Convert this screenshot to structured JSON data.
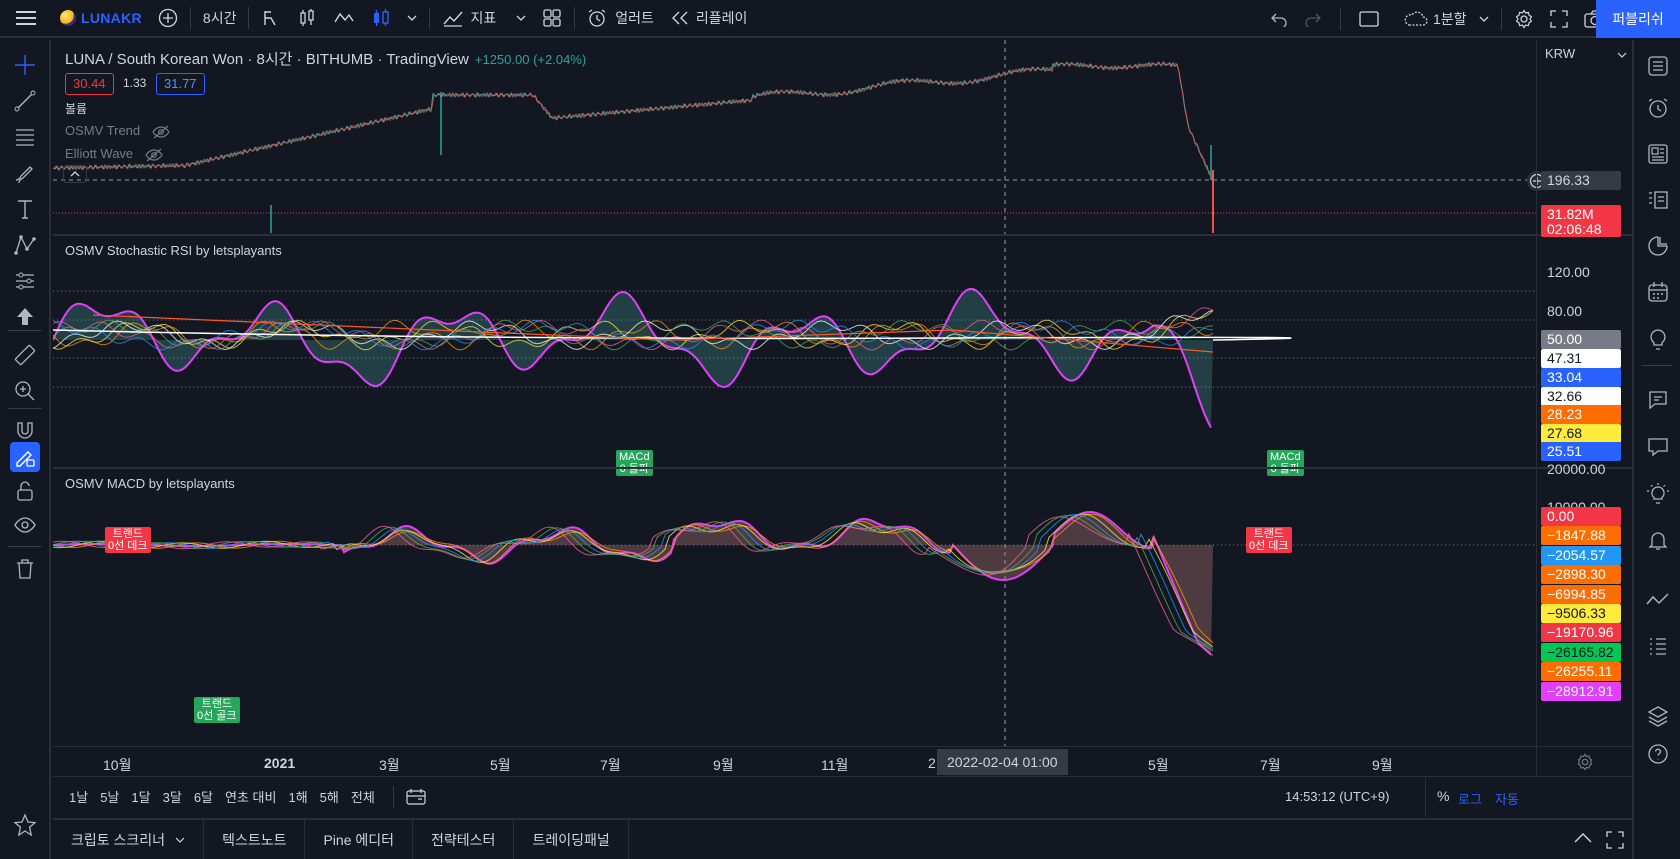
{
  "topbar": {
    "brand": "LUNAKR",
    "interval": "8시간",
    "indicators_label": "지표",
    "alert_label": "얼러트",
    "replay_label": "리플레이",
    "layout_label": "1분할",
    "publish_label": "퍼블리쉬"
  },
  "legend": {
    "title": "LUNA / South Korean Won · 8시간 · BITHUMB · TradingView",
    "change": "+1250.00 (+2.04%)",
    "values": [
      "30.44",
      "1.33",
      "31.77"
    ],
    "volume_label": "볼륨",
    "indicator_1": "OSMV Trend",
    "indicator_2": "Elliott Wave"
  },
  "panes": {
    "stoch_title": "OSMV Stochastic RSI by letsplayants",
    "macd_title": "OSMV MACD by letsplayants"
  },
  "price_scale": {
    "currency": "KRW",
    "main_price": "196.33",
    "volume_tag": "31.82M",
    "countdown": "02:06:48",
    "stoch_levels": [
      "120.00",
      "80.00"
    ],
    "stoch_tags": [
      {
        "value": "50.00",
        "bg": "#787b86",
        "fg": "#ffffff"
      },
      {
        "value": "47.31",
        "bg": "#ffffff",
        "fg": "#131722"
      },
      {
        "value": "33.04",
        "bg": "#2962ff",
        "fg": "#ffffff"
      },
      {
        "value": "32.66",
        "bg": "#ffffff",
        "fg": "#131722"
      },
      {
        "value": "28.23",
        "bg": "#ff6d00",
        "fg": "#ffffff"
      },
      {
        "value": "27.68",
        "bg": "#ffeb3b",
        "fg": "#131722"
      },
      {
        "value": "25.51",
        "bg": "#2962ff",
        "fg": "#ffffff"
      }
    ],
    "macd_levels": [
      "20000.00",
      "10000.00"
    ],
    "macd_tags": [
      {
        "value": "0.00",
        "bg": "#f23645",
        "fg": "#ffffff"
      },
      {
        "value": "−1847.88",
        "bg": "#ff6d00",
        "fg": "#ffffff"
      },
      {
        "value": "−2054.57",
        "bg": "#2196f3",
        "fg": "#ffffff"
      },
      {
        "value": "−2898.30",
        "bg": "#ff6d00",
        "fg": "#ffffff"
      },
      {
        "value": "−6994.85",
        "bg": "#ff6d00",
        "fg": "#ffffff"
      },
      {
        "value": "−9506.33",
        "bg": "#ffeb3b",
        "fg": "#131722"
      },
      {
        "value": "−19170.96",
        "bg": "#f23645",
        "fg": "#ffffff"
      },
      {
        "value": "−26165.82",
        "bg": "#00c853",
        "fg": "#131722"
      },
      {
        "value": "−26255.11",
        "bg": "#ff6d00",
        "fg": "#ffffff"
      },
      {
        "value": "−28912.91",
        "bg": "#e040fb",
        "fg": "#ffffff"
      }
    ]
  },
  "signals": {
    "macd_cross_1": "MACd",
    "macd_cross_1b": "0 돌파",
    "macd_cross_2": "MACd",
    "macd_cross_2b": "0 돌파",
    "trend_dead_1": "트랜드",
    "trend_dead_1b": "0선 데크",
    "trend_dead_2": "트랜드",
    "trend_dead_2b": "0선 데크",
    "trend_golden": "트랜드",
    "trend_goldenb": "0선 골크"
  },
  "time_axis": {
    "labels": [
      "10월",
      "2021",
      "3월",
      "5월",
      "7월",
      "9월",
      "11월",
      "2",
      "5월",
      "7월",
      "9월"
    ],
    "crosshair": "2022-02-04   01:00"
  },
  "range_bar": {
    "ranges": [
      "1날",
      "5날",
      "1달",
      "3달",
      "6달",
      "연초 대비",
      "1해",
      "5해",
      "전체"
    ],
    "clock": "14:53:12 (UTC+9)",
    "percent": "%",
    "log": "로그",
    "auto": "자동"
  },
  "bottom_tabs": [
    "크립토 스크리너",
    "텍스트노트",
    "Pine 에디터",
    "전략테스터",
    "트레이딩패널"
  ]
}
